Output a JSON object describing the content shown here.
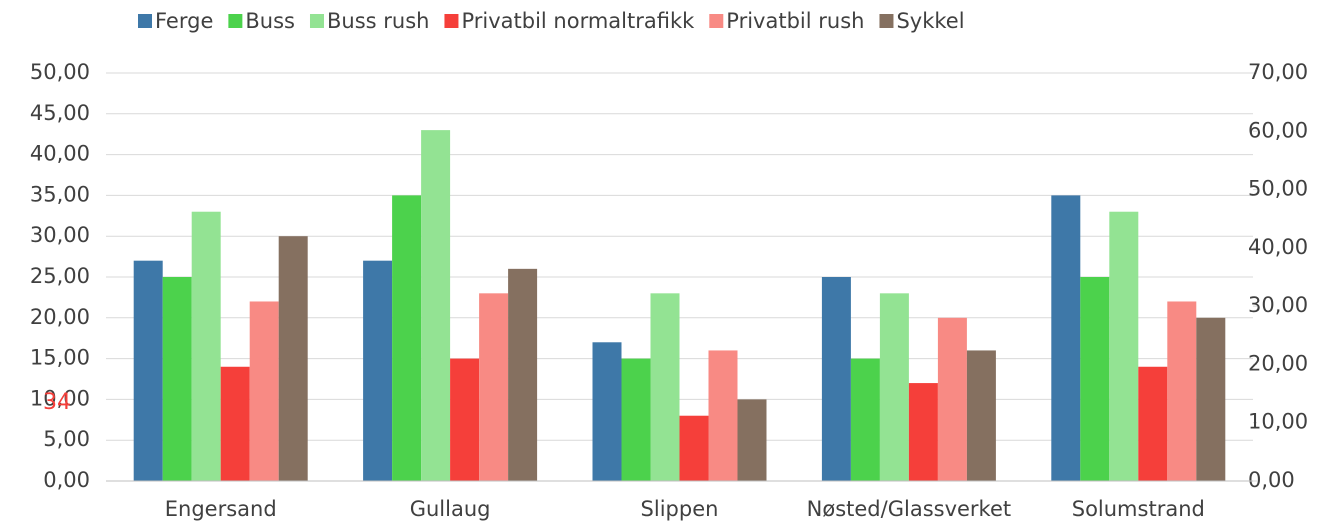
{
  "chart_data": {
    "type": "bar",
    "categories": [
      "Engersand",
      "Gullaug",
      "Slippen",
      "Nøsted/Glassverket",
      "Solumstrand"
    ],
    "series": [
      {
        "name": "Ferge",
        "color": "#3e78a8",
        "values": [
          27,
          27,
          17,
          25,
          35
        ]
      },
      {
        "name": "Buss",
        "color": "#4cd24c",
        "values": [
          25,
          35,
          15,
          15,
          25
        ]
      },
      {
        "name": "Buss rush",
        "color": "#93e393",
        "values": [
          33,
          43,
          23,
          23,
          33
        ]
      },
      {
        "name": "Privatbil normaltrafikk",
        "color": "#f53f3a",
        "values": [
          14,
          15,
          8,
          12,
          14
        ]
      },
      {
        "name": "Privatbil rush",
        "color": "#f88a84",
        "values": [
          22,
          23,
          16,
          20,
          22
        ]
      },
      {
        "name": "Sykkel",
        "color": "#857060",
        "values": [
          30,
          26,
          10,
          16,
          20
        ]
      }
    ],
    "ylim": [
      0,
      50
    ],
    "yticks": [
      {
        "value": 0,
        "label": "0,00"
      },
      {
        "value": 5,
        "label": "5,00"
      },
      {
        "value": 10,
        "label": "10,00"
      },
      {
        "value": 15,
        "label": "15,00"
      },
      {
        "value": 20,
        "label": "20,00"
      },
      {
        "value": 25,
        "label": "25,00"
      },
      {
        "value": 30,
        "label": "30,00"
      },
      {
        "value": 35,
        "label": "35,00"
      },
      {
        "value": 40,
        "label": "40,00"
      },
      {
        "value": 45,
        "label": "45,00"
      },
      {
        "value": 50,
        "label": "50,00"
      }
    ],
    "y2lim": [
      0,
      70
    ],
    "y2ticks": [
      {
        "value": 0,
        "label": "0,00"
      },
      {
        "value": 10,
        "label": "10,00"
      },
      {
        "value": 20,
        "label": "20,00"
      },
      {
        "value": 30,
        "label": "30,00"
      },
      {
        "value": 40,
        "label": "40,00"
      },
      {
        "value": 50,
        "label": "50,00"
      },
      {
        "value": 60,
        "label": "60,00"
      },
      {
        "value": 70,
        "label": "70,00"
      }
    ],
    "grid": true,
    "legend": "top",
    "annotation": "34"
  }
}
